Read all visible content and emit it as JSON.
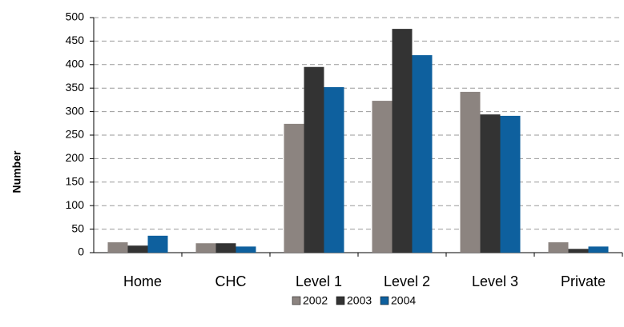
{
  "chart_data": {
    "type": "bar",
    "y_label": "Number",
    "categories": [
      "Home",
      "CHC",
      "Level 1",
      "Level 2",
      "Level 3",
      "Private"
    ],
    "series": [
      {
        "name": "2002",
        "color": "#8c8480",
        "values": [
          22,
          20,
          274,
          323,
          342,
          22
        ]
      },
      {
        "name": "2003",
        "color": "#333333",
        "values": [
          15,
          20,
          395,
          476,
          294,
          8
        ]
      },
      {
        "name": "2004",
        "color": "#0e609e",
        "values": [
          36,
          13,
          352,
          420,
          291,
          13
        ]
      }
    ],
    "ylim": [
      0,
      500
    ],
    "yticks": [
      0,
      50,
      100,
      150,
      200,
      250,
      300,
      350,
      400,
      450,
      500
    ],
    "grid": true,
    "legend": "bottom"
  }
}
